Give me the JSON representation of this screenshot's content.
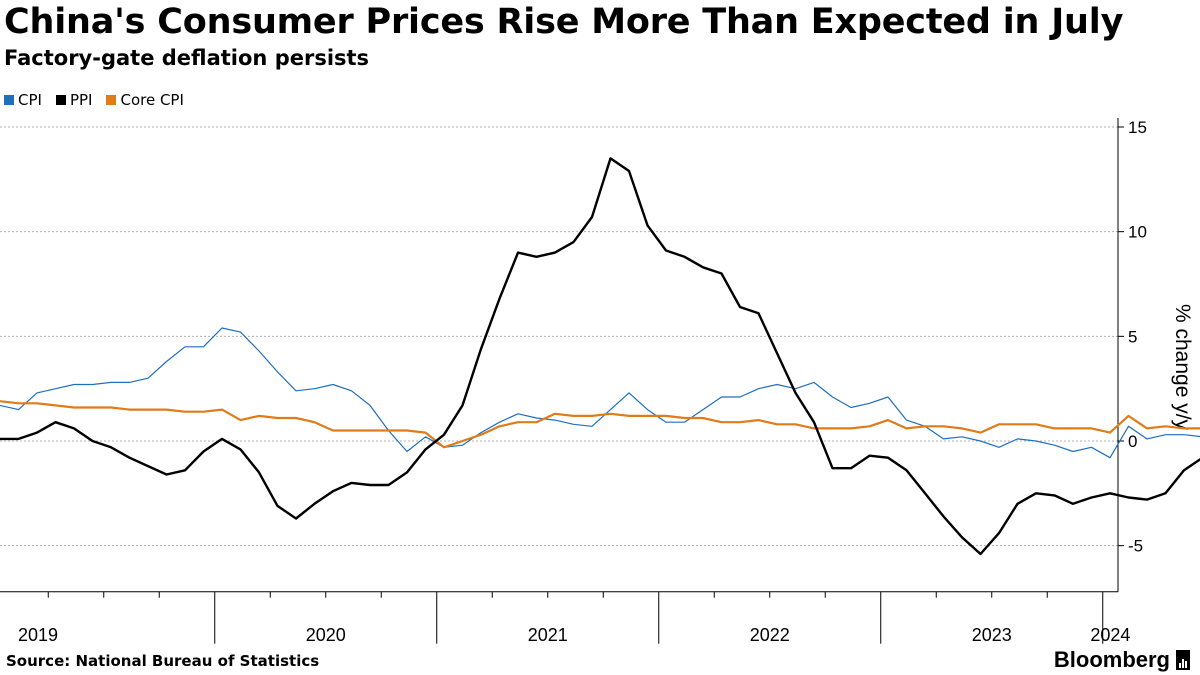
{
  "title": "China's Consumer Prices Rise More Than Expected in July",
  "subtitle": "Factory-gate deflation persists",
  "source": "Source: National Bureau of Statistics",
  "brand": "Bloomberg",
  "colors": {
    "cpi": "#1f6fbf",
    "ppi": "#000000",
    "core_cpi": "#e07b1a",
    "grid": "#b0b0b0"
  },
  "chart_data": {
    "type": "line",
    "ylabel": "% change y/y",
    "ylim": [
      -7.2,
      15.6
    ],
    "yticks": [
      15,
      10,
      5,
      0,
      -5
    ],
    "ytick_labels": [
      "15",
      "10",
      "5",
      "0",
      "-5"
    ],
    "year_labels": [
      "2019",
      "2020",
      "2021",
      "2022",
      "2023",
      "2024"
    ],
    "x_start": "2019-01",
    "x_end": "2024-07",
    "series": [
      {
        "name": "CPI",
        "key": "cpi",
        "values": [
          1.7,
          1.5,
          2.3,
          2.5,
          2.7,
          2.7,
          2.8,
          2.8,
          3.0,
          3.8,
          4.5,
          4.5,
          5.4,
          5.2,
          4.3,
          3.3,
          2.4,
          2.5,
          2.7,
          2.4,
          1.7,
          0.5,
          -0.5,
          0.2,
          -0.3,
          -0.2,
          0.4,
          0.9,
          1.3,
          1.1,
          1.0,
          0.8,
          0.7,
          1.5,
          2.3,
          1.5,
          0.9,
          0.9,
          1.5,
          2.1,
          2.1,
          2.5,
          2.7,
          2.5,
          2.8,
          2.1,
          1.6,
          1.8,
          2.1,
          1.0,
          0.7,
          0.1,
          0.2,
          0.0,
          -0.3,
          0.1,
          0.0,
          -0.2,
          -0.5,
          -0.3,
          -0.8,
          0.7,
          0.1,
          0.3,
          0.3,
          0.2,
          0.5
        ]
      },
      {
        "name": "PPI",
        "key": "ppi",
        "values": [
          0.1,
          0.1,
          0.4,
          0.9,
          0.6,
          0.0,
          -0.3,
          -0.8,
          -1.2,
          -1.6,
          -1.4,
          -0.5,
          0.1,
          -0.4,
          -1.5,
          -3.1,
          -3.7,
          -3.0,
          -2.4,
          -2.0,
          -2.1,
          -2.1,
          -1.5,
          -0.4,
          0.3,
          1.7,
          4.4,
          6.8,
          9.0,
          8.8,
          9.0,
          9.5,
          10.7,
          13.5,
          12.9,
          10.3,
          9.1,
          8.8,
          8.3,
          8.0,
          6.4,
          6.1,
          4.2,
          2.3,
          0.9,
          -1.3,
          -1.3,
          -0.7,
          -0.8,
          -1.4,
          -2.5,
          -3.6,
          -4.6,
          -5.4,
          -4.4,
          -3.0,
          -2.5,
          -2.6,
          -3.0,
          -2.7,
          -2.5,
          -2.7,
          -2.8,
          -2.5,
          -1.4,
          -0.8,
          -0.8
        ]
      },
      {
        "name": "Core CPI",
        "key": "core_cpi",
        "values": [
          1.9,
          1.8,
          1.8,
          1.7,
          1.6,
          1.6,
          1.6,
          1.5,
          1.5,
          1.5,
          1.4,
          1.4,
          1.5,
          1.0,
          1.2,
          1.1,
          1.1,
          0.9,
          0.5,
          0.5,
          0.5,
          0.5,
          0.5,
          0.4,
          -0.3,
          0.0,
          0.3,
          0.7,
          0.9,
          0.9,
          1.3,
          1.2,
          1.2,
          1.3,
          1.2,
          1.2,
          1.2,
          1.1,
          1.1,
          0.9,
          0.9,
          1.0,
          0.8,
          0.8,
          0.6,
          0.6,
          0.6,
          0.7,
          1.0,
          0.6,
          0.7,
          0.7,
          0.6,
          0.4,
          0.8,
          0.8,
          0.8,
          0.6,
          0.6,
          0.6,
          0.4,
          1.2,
          0.6,
          0.7,
          0.6,
          0.6,
          0.4
        ]
      }
    ]
  }
}
